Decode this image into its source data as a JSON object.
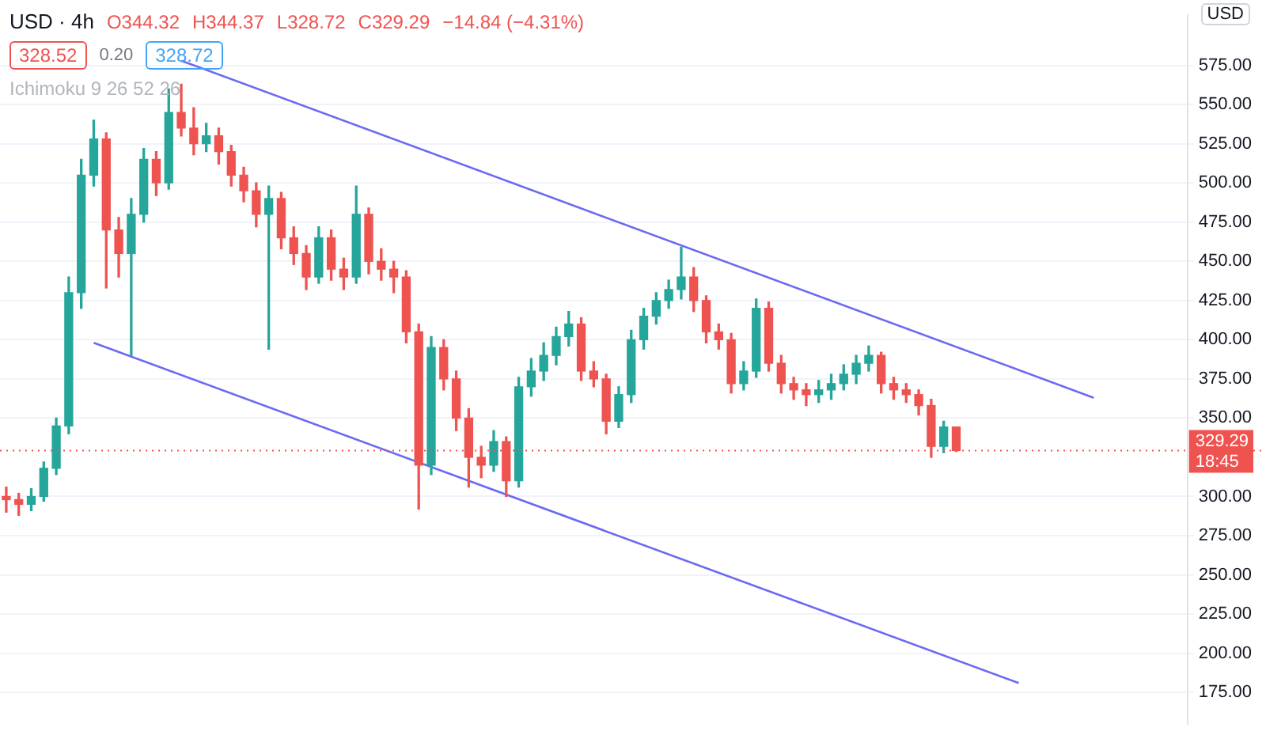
{
  "chart_data": {
    "type": "candlestick",
    "title": "USD · 4h",
    "ylabel": "USD",
    "annotations": [
      "O344.32",
      "H344.37",
      "L328.72",
      "C329.29",
      "−14.84 (−4.31%)",
      "328.52",
      "0.20",
      "328.72",
      "Ichimoku 9 26 52 26",
      "18:45"
    ],
    "categories": [
      null,
      null,
      null,
      null,
      null,
      null,
      null,
      null,
      null,
      null,
      null,
      null,
      null,
      null,
      null,
      null,
      null,
      null,
      null,
      null,
      null,
      null,
      null,
      null,
      null,
      null,
      null,
      null,
      null,
      null,
      null,
      null,
      null,
      null,
      null,
      null,
      null,
      null,
      null,
      null,
      null,
      null,
      null,
      null,
      null,
      null,
      null,
      null,
      null,
      null,
      null,
      null,
      null,
      null,
      null,
      null,
      null,
      null,
      null,
      null,
      null,
      null,
      null,
      null,
      null,
      null,
      null,
      null,
      null,
      null,
      null,
      null,
      null,
      null,
      null,
      null,
      null,
      null,
      null,
      null,
      null,
      null,
      null,
      null,
      null,
      null,
      null,
      null,
      null,
      null,
      null,
      null,
      null,
      null,
      null
    ],
    "series": [
      {
        "ohlc": [
          [
            300,
            306,
            290,
            298
          ],
          [
            298,
            302,
            288,
            295
          ],
          [
            295,
            305,
            291,
            300
          ],
          [
            300,
            322,
            297,
            318
          ],
          [
            318,
            350,
            314,
            345
          ],
          [
            345,
            440,
            340,
            430
          ],
          [
            430,
            515,
            420,
            505
          ],
          [
            505,
            540,
            498,
            528
          ],
          [
            528,
            532,
            433,
            470
          ],
          [
            470,
            478,
            440,
            455
          ],
          [
            455,
            490,
            390,
            480
          ],
          [
            480,
            522,
            475,
            515
          ],
          [
            515,
            520,
            492,
            500
          ],
          [
            500,
            560,
            496,
            545
          ],
          [
            545,
            563,
            530,
            535
          ],
          [
            535,
            548,
            518,
            525
          ],
          [
            525,
            538,
            520,
            530
          ],
          [
            530,
            535,
            512,
            520
          ],
          [
            520,
            524,
            498,
            505
          ],
          [
            505,
            510,
            488,
            495
          ],
          [
            495,
            500,
            472,
            480
          ],
          [
            480,
            498,
            394,
            490
          ],
          [
            490,
            494,
            458,
            465
          ],
          [
            465,
            472,
            448,
            455
          ],
          [
            455,
            460,
            432,
            440
          ],
          [
            440,
            472,
            436,
            465
          ],
          [
            465,
            470,
            438,
            445
          ],
          [
            445,
            452,
            432,
            440
          ],
          [
            440,
            498,
            436,
            480
          ],
          [
            480,
            484,
            442,
            450
          ],
          [
            450,
            458,
            438,
            445
          ],
          [
            445,
            450,
            430,
            440
          ],
          [
            440,
            444,
            398,
            405
          ],
          [
            405,
            410,
            292,
            320
          ],
          [
            320,
            402,
            314,
            395
          ],
          [
            395,
            400,
            368,
            375
          ],
          [
            375,
            380,
            342,
            350
          ],
          [
            350,
            356,
            306,
            325
          ],
          [
            325,
            332,
            312,
            320
          ],
          [
            320,
            342,
            316,
            335
          ],
          [
            335,
            338,
            300,
            310
          ],
          [
            310,
            376,
            306,
            370
          ],
          [
            370,
            388,
            364,
            380
          ],
          [
            380,
            398,
            374,
            390
          ],
          [
            390,
            408,
            384,
            402
          ],
          [
            402,
            418,
            396,
            410
          ],
          [
            410,
            414,
            374,
            380
          ],
          [
            380,
            386,
            370,
            375
          ],
          [
            375,
            378,
            340,
            348
          ],
          [
            348,
            370,
            344,
            365
          ],
          [
            365,
            406,
            360,
            400
          ],
          [
            400,
            420,
            394,
            415
          ],
          [
            415,
            430,
            410,
            425
          ],
          [
            425,
            438,
            420,
            432
          ],
          [
            432,
            459,
            426,
            440
          ],
          [
            440,
            446,
            418,
            425
          ],
          [
            425,
            428,
            398,
            405
          ],
          [
            405,
            410,
            394,
            400
          ],
          [
            400,
            404,
            366,
            372
          ],
          [
            372,
            386,
            368,
            380
          ],
          [
            380,
            426,
            376,
            420
          ],
          [
            420,
            424,
            380,
            385
          ],
          [
            385,
            390,
            366,
            372
          ],
          [
            372,
            376,
            362,
            368
          ],
          [
            368,
            372,
            358,
            365
          ],
          [
            365,
            374,
            360,
            368
          ],
          [
            368,
            378,
            362,
            372
          ],
          [
            372,
            384,
            368,
            378
          ],
          [
            378,
            390,
            372,
            385
          ],
          [
            385,
            396,
            380,
            390
          ],
          [
            390,
            392,
            366,
            372
          ],
          [
            372,
            376,
            362,
            368
          ],
          [
            368,
            372,
            360,
            365
          ],
          [
            365,
            368,
            352,
            358
          ],
          [
            358,
            362,
            325,
            332
          ],
          [
            332,
            348,
            328,
            344.32
          ],
          [
            344.32,
            344.37,
            328.72,
            329.29
          ],
          null,
          null,
          null,
          null,
          null,
          null,
          null,
          null,
          null,
          null,
          null,
          null,
          null,
          null,
          null,
          null,
          null,
          null
        ],
        "colors": [
          "#ef5350",
          "#ef5350",
          "#26a69a",
          "#26a69a",
          "#26a69a",
          "#26a69a",
          "#26a69a",
          "#26a69a",
          "#ef5350",
          "#ef5350",
          "#26a69a",
          "#26a69a",
          "#ef5350",
          "#26a69a",
          "#ef5350",
          "#ef5350",
          "#26a69a",
          "#ef5350",
          "#ef5350",
          "#ef5350",
          "#ef5350",
          "#26a69a",
          "#ef5350",
          "#ef5350",
          "#ef5350",
          "#26a69a",
          "#ef5350",
          "#ef5350",
          "#26a69a",
          "#ef5350",
          "#ef5350",
          "#ef5350",
          "#ef5350",
          "#ef5350",
          "#26a69a",
          "#ef5350",
          "#ef5350",
          "#ef5350",
          "#ef5350",
          "#26a69a",
          "#ef5350",
          "#26a69a",
          "#26a69a",
          "#26a69a",
          "#26a69a",
          "#26a69a",
          "#ef5350",
          "#ef5350",
          "#ef5350",
          "#26a69a",
          "#26a69a",
          "#26a69a",
          "#26a69a",
          "#26a69a",
          "#26a69a",
          "#ef5350",
          "#ef5350",
          "#ef5350",
          "#ef5350",
          "#26a69a",
          "#26a69a",
          "#ef5350",
          "#ef5350",
          "#ef5350",
          "#ef5350",
          "#26a69a",
          "#26a69a",
          "#26a69a",
          "#26a69a",
          "#26a69a",
          "#ef5350",
          "#ef5350",
          "#ef5350",
          "#ef5350",
          "#ef5350",
          "#26a69a",
          "#ef5350",
          null,
          null,
          null,
          null,
          null,
          null,
          null,
          null,
          null,
          null,
          null,
          null,
          null,
          null,
          null,
          null,
          null,
          null
        ]
      },
      {
        "type": "line",
        "color": "#6b6bf2",
        "values": [
          null,
          null,
          null,
          null,
          null,
          null,
          null,
          null,
          null,
          null,
          null,
          null,
          null,
          null,
          578,
          null,
          null,
          null,
          null,
          null,
          null,
          null,
          null,
          null,
          null,
          null,
          null,
          null,
          null,
          null,
          null,
          null,
          null,
          null,
          null,
          null,
          null,
          null,
          null,
          null,
          null,
          null,
          null,
          null,
          null,
          null,
          null,
          null,
          null,
          null,
          null,
          null,
          null,
          null,
          null,
          null,
          null,
          null,
          null,
          null,
          null,
          null,
          null,
          null,
          null,
          null,
          null,
          null,
          null,
          null,
          null,
          null,
          null,
          null,
          null,
          null,
          null,
          null,
          null,
          null,
          null,
          null,
          null,
          null,
          null,
          null,
          null,
          363,
          null,
          null,
          null,
          null,
          null,
          null,
          null
        ]
      },
      {
        "type": "line",
        "color": "#6b6bf2",
        "values": [
          null,
          null,
          null,
          null,
          null,
          null,
          null,
          398,
          null,
          null,
          null,
          null,
          null,
          null,
          null,
          null,
          null,
          null,
          null,
          null,
          null,
          null,
          null,
          null,
          null,
          null,
          null,
          null,
          null,
          null,
          null,
          null,
          null,
          null,
          null,
          null,
          null,
          null,
          null,
          null,
          null,
          null,
          null,
          null,
          null,
          null,
          null,
          null,
          null,
          null,
          null,
          null,
          null,
          null,
          null,
          null,
          null,
          null,
          null,
          null,
          null,
          null,
          null,
          null,
          null,
          null,
          null,
          null,
          null,
          null,
          null,
          null,
          null,
          null,
          null,
          null,
          null,
          null,
          null,
          null,
          null,
          181,
          null,
          null,
          null,
          null,
          null,
          null,
          null,
          null,
          null,
          null,
          null,
          null,
          null
        ]
      }
    ],
    "ylim": [
      155,
      607
    ],
    "yticks": [
      {
        "value": 175,
        "label": "175.00"
      },
      {
        "value": 200,
        "label": "200.00"
      },
      {
        "value": 225,
        "label": "225.00"
      },
      {
        "value": 250,
        "label": "250.00"
      },
      {
        "value": 275,
        "label": "275.00"
      },
      {
        "value": 300,
        "label": "300.00"
      },
      {
        "value": 350,
        "label": "350.00"
      },
      {
        "value": 375,
        "label": "375.00"
      },
      {
        "value": 400,
        "label": "400.00"
      },
      {
        "value": 425,
        "label": "425.00"
      },
      {
        "value": 450,
        "label": "450.00"
      },
      {
        "value": 475,
        "label": "475.00"
      },
      {
        "value": 500,
        "label": "500.00"
      },
      {
        "value": 525,
        "label": "525.00"
      },
      {
        "value": 550,
        "label": "550.00"
      },
      {
        "value": 575,
        "label": "575.00"
      }
    ],
    "ref_lines": [
      {
        "axis": "y",
        "value": 329.29,
        "label": "329.29",
        "color": "#ef5350",
        "line_style": "dotted"
      }
    ],
    "grid": "y",
    "legend": false,
    "tick_labels": "y",
    "marker": "none",
    "line_style": "solid"
  }
}
